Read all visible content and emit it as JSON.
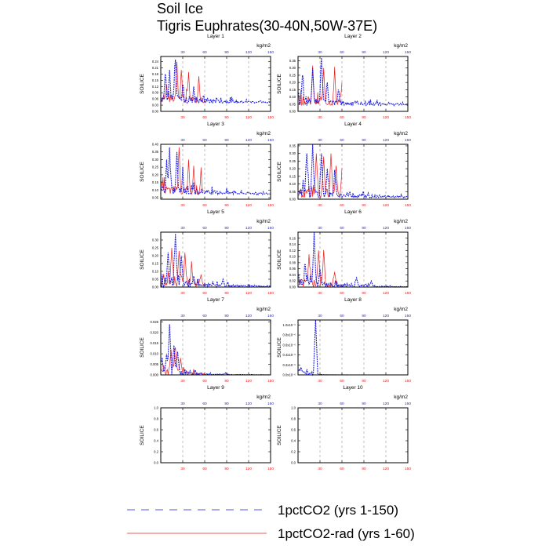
{
  "title": "Soil Ice",
  "subtitle": "Tigris Euphrates(30-40N,50W-37E)",
  "colors": {
    "ctrl": "#1f1fe0",
    "rad": "#e82020"
  },
  "legend": [
    {
      "label": "1pctCO2 (yrs 1-150)",
      "color": "#1f1fe0",
      "style": "dashed"
    },
    {
      "label": "1pctCO2-rad (yrs 1-60)",
      "color": "#e82020",
      "style": "solid"
    }
  ],
  "chart_data": [
    {
      "type": "line",
      "title": "Layer 1",
      "top_unit": "kg/m2",
      "ylabel": "SOILICE",
      "ylim": [
        0,
        0.265
      ],
      "yticks": [
        "0.00",
        "0.03",
        "0.06",
        "0.09",
        "0.12",
        "0.15",
        "0.18",
        "0.21",
        "0.24"
      ],
      "ytick_values": [
        0,
        0.03,
        0.06,
        0.09,
        0.12,
        0.15,
        0.18,
        0.21,
        0.24
      ],
      "xlim": [
        0,
        150
      ],
      "xticks": [
        30,
        60,
        90,
        120,
        150
      ],
      "tick_labels_x": [
        "30",
        "60",
        "90",
        "120",
        "150"
      ],
      "peaks_ctrl": [
        [
          20,
          0.25
        ],
        [
          6,
          0.18
        ],
        [
          12,
          0.2
        ],
        [
          30,
          0.13
        ],
        [
          45,
          0.12
        ]
      ],
      "peaks_rad": [
        [
          22,
          0.24
        ],
        [
          28,
          0.2
        ],
        [
          38,
          0.19
        ],
        [
          52,
          0.17
        ],
        [
          8,
          0.13
        ]
      ],
      "baseline": 0.04,
      "decay": 0.012
    },
    {
      "type": "line",
      "title": "Layer 2",
      "top_unit": "kg/m2",
      "ylabel": "SOILICE",
      "ylim": [
        0,
        0.38
      ],
      "yticks": [
        "0.00",
        "0.05",
        "0.10",
        "0.15",
        "0.20",
        "0.25",
        "0.30",
        "0.35"
      ],
      "ytick_values": [
        0,
        0.05,
        0.1,
        0.15,
        0.2,
        0.25,
        0.3,
        0.35
      ],
      "xlim": [
        0,
        150
      ],
      "xticks": [
        30,
        60,
        90,
        120,
        150
      ],
      "tick_labels_x": [
        "30",
        "60",
        "90",
        "120",
        "150"
      ],
      "peaks_ctrl": [
        [
          32,
          0.37
        ],
        [
          20,
          0.3
        ],
        [
          6,
          0.25
        ],
        [
          40,
          0.2
        ],
        [
          55,
          0.15
        ]
      ],
      "peaks_rad": [
        [
          20,
          0.3
        ],
        [
          35,
          0.3
        ],
        [
          50,
          0.28
        ],
        [
          60,
          0.2
        ]
      ],
      "baseline": 0.04,
      "decay": 0.012
    },
    {
      "type": "line",
      "title": "Layer 3",
      "top_unit": "kg/m2",
      "ylabel": "SOILICE",
      "ylim": [
        0.04,
        0.4
      ],
      "yticks": [
        "0.05",
        "0.10",
        "0.15",
        "0.20",
        "0.25",
        "0.30",
        "0.35",
        "0.40"
      ],
      "ytick_values": [
        0.05,
        0.1,
        0.15,
        0.2,
        0.25,
        0.3,
        0.35,
        0.4
      ],
      "xlim": [
        0,
        150
      ],
      "xticks": [
        30,
        60,
        90,
        120,
        150
      ],
      "tick_labels_x": [
        "30",
        "60",
        "90",
        "120",
        "150"
      ],
      "peaks_ctrl": [
        [
          12,
          0.38
        ],
        [
          8,
          0.3
        ],
        [
          22,
          0.35
        ],
        [
          30,
          0.22
        ],
        [
          45,
          0.15
        ]
      ],
      "peaks_rad": [
        [
          25,
          0.38
        ],
        [
          38,
          0.3
        ],
        [
          45,
          0.26
        ],
        [
          55,
          0.22
        ]
      ],
      "baseline": 0.07,
      "decay": 0.012
    },
    {
      "type": "line",
      "title": "Layer 4",
      "top_unit": "kg/m2",
      "ylabel": "SOILICE",
      "ylim": [
        0,
        0.36
      ],
      "yticks": [
        "0.00",
        "0.05",
        "0.10",
        "0.15",
        "0.20",
        "0.25",
        "0.30",
        "0.35"
      ],
      "ytick_values": [
        0,
        0.05,
        0.1,
        0.15,
        0.2,
        0.25,
        0.3,
        0.35
      ],
      "xlim": [
        0,
        150
      ],
      "xticks": [
        30,
        60,
        90,
        120,
        150
      ],
      "tick_labels_x": [
        "30",
        "60",
        "90",
        "120",
        "150"
      ],
      "peaks_ctrl": [
        [
          20,
          0.35
        ],
        [
          12,
          0.3
        ],
        [
          32,
          0.3
        ],
        [
          40,
          0.2
        ],
        [
          50,
          0.15
        ]
      ],
      "peaks_rad": [
        [
          25,
          0.3
        ],
        [
          35,
          0.28
        ],
        [
          45,
          0.3
        ],
        [
          52,
          0.22
        ],
        [
          60,
          0.18
        ]
      ],
      "baseline": 0.01,
      "decay": 0.012
    },
    {
      "type": "line",
      "title": "Layer 5",
      "top_unit": "kg/m2",
      "ylabel": "SOILICE",
      "ylim": [
        0,
        0.35
      ],
      "yticks": [
        "0.00",
        "0.05",
        "0.10",
        "0.15",
        "0.20",
        "0.25",
        "0.30"
      ],
      "ytick_values": [
        0,
        0.05,
        0.1,
        0.15,
        0.2,
        0.25,
        0.3
      ],
      "xlim": [
        0,
        150
      ],
      "xticks": [
        30,
        60,
        90,
        120,
        150
      ],
      "tick_labels_x": [
        "30",
        "60",
        "90",
        "120",
        "150"
      ],
      "peaks_ctrl": [
        [
          20,
          0.34
        ],
        [
          10,
          0.22
        ],
        [
          28,
          0.2
        ],
        [
          45,
          0.07
        ],
        [
          85,
          0.05
        ]
      ],
      "peaks_rad": [
        [
          15,
          0.25
        ],
        [
          25,
          0.23
        ],
        [
          33,
          0.22
        ],
        [
          42,
          0.12
        ],
        [
          55,
          0.08
        ]
      ],
      "baseline": 0.0,
      "decay": 0.015
    },
    {
      "type": "line",
      "title": "Layer 6",
      "top_unit": "kg/m2",
      "ylabel": "SOILICE",
      "ylim": [
        0,
        0.18
      ],
      "yticks": [
        "0.00",
        "0.02",
        "0.04",
        "0.06",
        "0.08",
        "0.10",
        "0.12",
        "0.14",
        "0.16"
      ],
      "ytick_values": [
        0,
        0.02,
        0.04,
        0.06,
        0.08,
        0.1,
        0.12,
        0.14,
        0.16
      ],
      "xlim": [
        0,
        150
      ],
      "xticks": [
        30,
        60,
        90,
        120,
        150
      ],
      "tick_labels_x": [
        "30",
        "60",
        "90",
        "120",
        "150"
      ],
      "peaks_ctrl": [
        [
          22,
          0.17
        ],
        [
          10,
          0.06
        ],
        [
          30,
          0.06
        ],
        [
          80,
          0.03
        ],
        [
          100,
          0.02
        ]
      ],
      "peaks_rad": [
        [
          15,
          0.1
        ],
        [
          28,
          0.12
        ],
        [
          35,
          0.1
        ],
        [
          50,
          0.05
        ]
      ],
      "baseline": 0.0,
      "decay": 0.02
    },
    {
      "type": "line",
      "title": "Layer 7",
      "top_unit": "kg/m2",
      "ylabel": "SOILICE",
      "ylim": [
        0,
        0.026
      ],
      "yticks": [
        "0.000",
        "0.005",
        "0.010",
        "0.015",
        "0.020",
        "0.025"
      ],
      "ytick_values": [
        0,
        0.005,
        0.01,
        0.015,
        0.02,
        0.025
      ],
      "xlim": [
        0,
        150
      ],
      "xticks": [
        30,
        60,
        90,
        120,
        150
      ],
      "tick_labels_x": [
        "30",
        "60",
        "90",
        "120",
        "150"
      ],
      "peaks_ctrl": [
        [
          12,
          0.024
        ],
        [
          8,
          0.01
        ],
        [
          18,
          0.014
        ],
        [
          23,
          0.011
        ],
        [
          88,
          0.001
        ]
      ],
      "peaks_rad": [
        [
          14,
          0.012
        ],
        [
          20,
          0.013
        ],
        [
          27,
          0.008
        ],
        [
          35,
          0.002
        ]
      ],
      "baseline": 0.0,
      "decay": 0.03
    },
    {
      "type": "line",
      "title": "Layer 8",
      "top_unit": "kg/m2",
      "ylabel": "SOILICE",
      "ylim": [
        0,
        1.1e-06
      ],
      "yticks": [
        "0.0x10⁻⁶",
        "0.2x10⁻⁶",
        "0.4x10⁻⁶",
        "0.6x10⁻⁶",
        "0.8x10⁻⁶",
        "1.0x10⁻⁶"
      ],
      "ytick_values": [
        0,
        2e-07,
        4e-07,
        6e-07,
        8e-07,
        1e-06
      ],
      "xlim": [
        0,
        150
      ],
      "xticks": [
        30,
        60,
        90,
        120,
        150
      ],
      "tick_labels_x": [
        "30",
        "60",
        "90",
        "120",
        "150"
      ],
      "peaks_ctrl": [
        [
          24,
          1.1e-06
        ]
      ],
      "peaks_rad": [],
      "baseline": 0.0,
      "decay": 0.1
    },
    {
      "type": "line",
      "title": "Layer 9",
      "top_unit": "kg/m2",
      "ylabel": "SOILICE",
      "ylim": [
        0,
        1.0
      ],
      "yticks": [
        "0.0",
        "0.2",
        "0.4",
        "0.6",
        "0.8",
        "1.0"
      ],
      "ytick_values": [
        0,
        0.2,
        0.4,
        0.6,
        0.8,
        1.0
      ],
      "xlim": [
        0,
        150
      ],
      "xticks": [
        30,
        60,
        90,
        120,
        150
      ],
      "tick_labels_x": [
        "30",
        "60",
        "90",
        "120",
        "150"
      ],
      "peaks_ctrl": [],
      "peaks_rad": [],
      "empty": true
    },
    {
      "type": "line",
      "title": "Layer 10",
      "top_unit": "kg/m2",
      "ylabel": "SOILICE",
      "ylim": [
        0,
        1.0
      ],
      "yticks": [
        "0.0",
        "0.2",
        "0.4",
        "0.6",
        "0.8",
        "1.0"
      ],
      "ytick_values": [
        0,
        0.2,
        0.4,
        0.6,
        0.8,
        1.0
      ],
      "xlim": [
        0,
        150
      ],
      "xticks": [
        30,
        60,
        90,
        120,
        150
      ],
      "tick_labels_x": [
        "30",
        "60",
        "90",
        "120",
        "150"
      ],
      "peaks_ctrl": [],
      "peaks_rad": [],
      "empty": true
    }
  ]
}
